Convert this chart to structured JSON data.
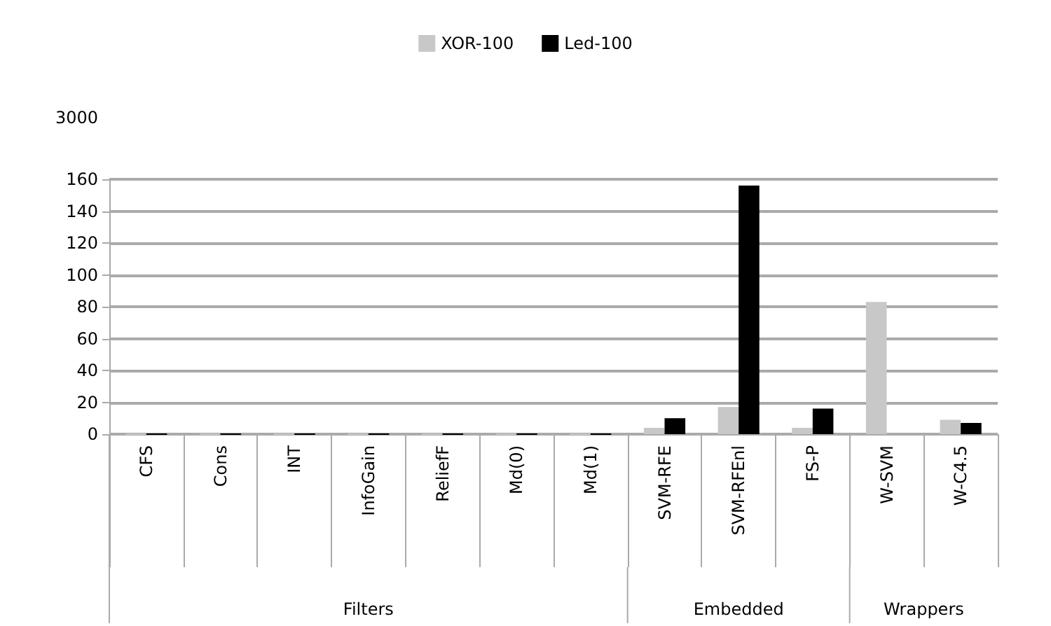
{
  "chart_data": {
    "type": "bar",
    "categories": [
      "CFS",
      "Cons",
      "INT",
      "InfoGain",
      "ReliefF",
      "Md(0)",
      "Md(1)",
      "SVM-RFE",
      "SVM-RFEnl",
      "FS-P",
      "W-SVM",
      "W-C4.5"
    ],
    "series": [
      {
        "name": "XOR-100",
        "color": "#c8c8c8",
        "values": [
          0,
          0,
          0,
          0,
          0,
          0,
          0,
          4,
          17,
          4,
          83,
          9
        ]
      },
      {
        "name": "Led-100",
        "color": "#000000",
        "values": [
          0,
          0,
          0,
          0,
          0,
          0,
          0,
          10,
          156,
          16,
          null,
          7
        ]
      }
    ],
    "ylim": [
      0,
      160
    ],
    "yticks": [
      0,
      20,
      40,
      60,
      80,
      100,
      120,
      140,
      160
    ],
    "grid": "y",
    "legend": "top",
    "annotations": [
      "3000",
      "Filters",
      "Embedded",
      "Wrappers"
    ]
  }
}
